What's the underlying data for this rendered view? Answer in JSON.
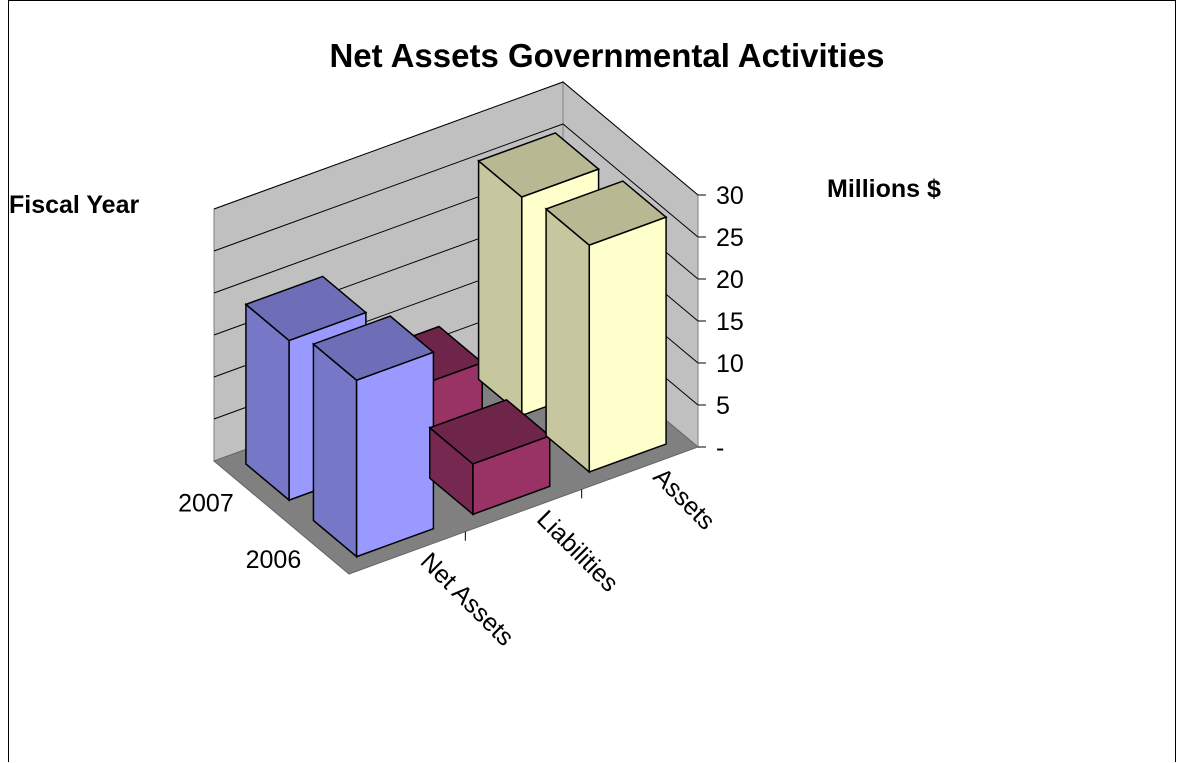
{
  "chart_data": {
    "type": "bar",
    "title": "Net Assets Governmental Activities",
    "zlabel": "Fiscal Year",
    "ylabel": "Millions $",
    "categories": [
      "Net Assets",
      "Liabilities",
      "Assets"
    ],
    "series": [
      {
        "name": "2007",
        "values": [
          19,
          8,
          26
        ]
      },
      {
        "name": "2006",
        "values": [
          21,
          6,
          27
        ]
      }
    ],
    "series_colors": [
      "#9999ff",
      "#993366",
      "#ffffcc"
    ],
    "yticks": [
      "-",
      "5",
      "10",
      "15",
      "20",
      "25",
      "30"
    ],
    "ylim": [
      0,
      30
    ],
    "grid": true,
    "legend": "none",
    "projection": "3d-column"
  }
}
